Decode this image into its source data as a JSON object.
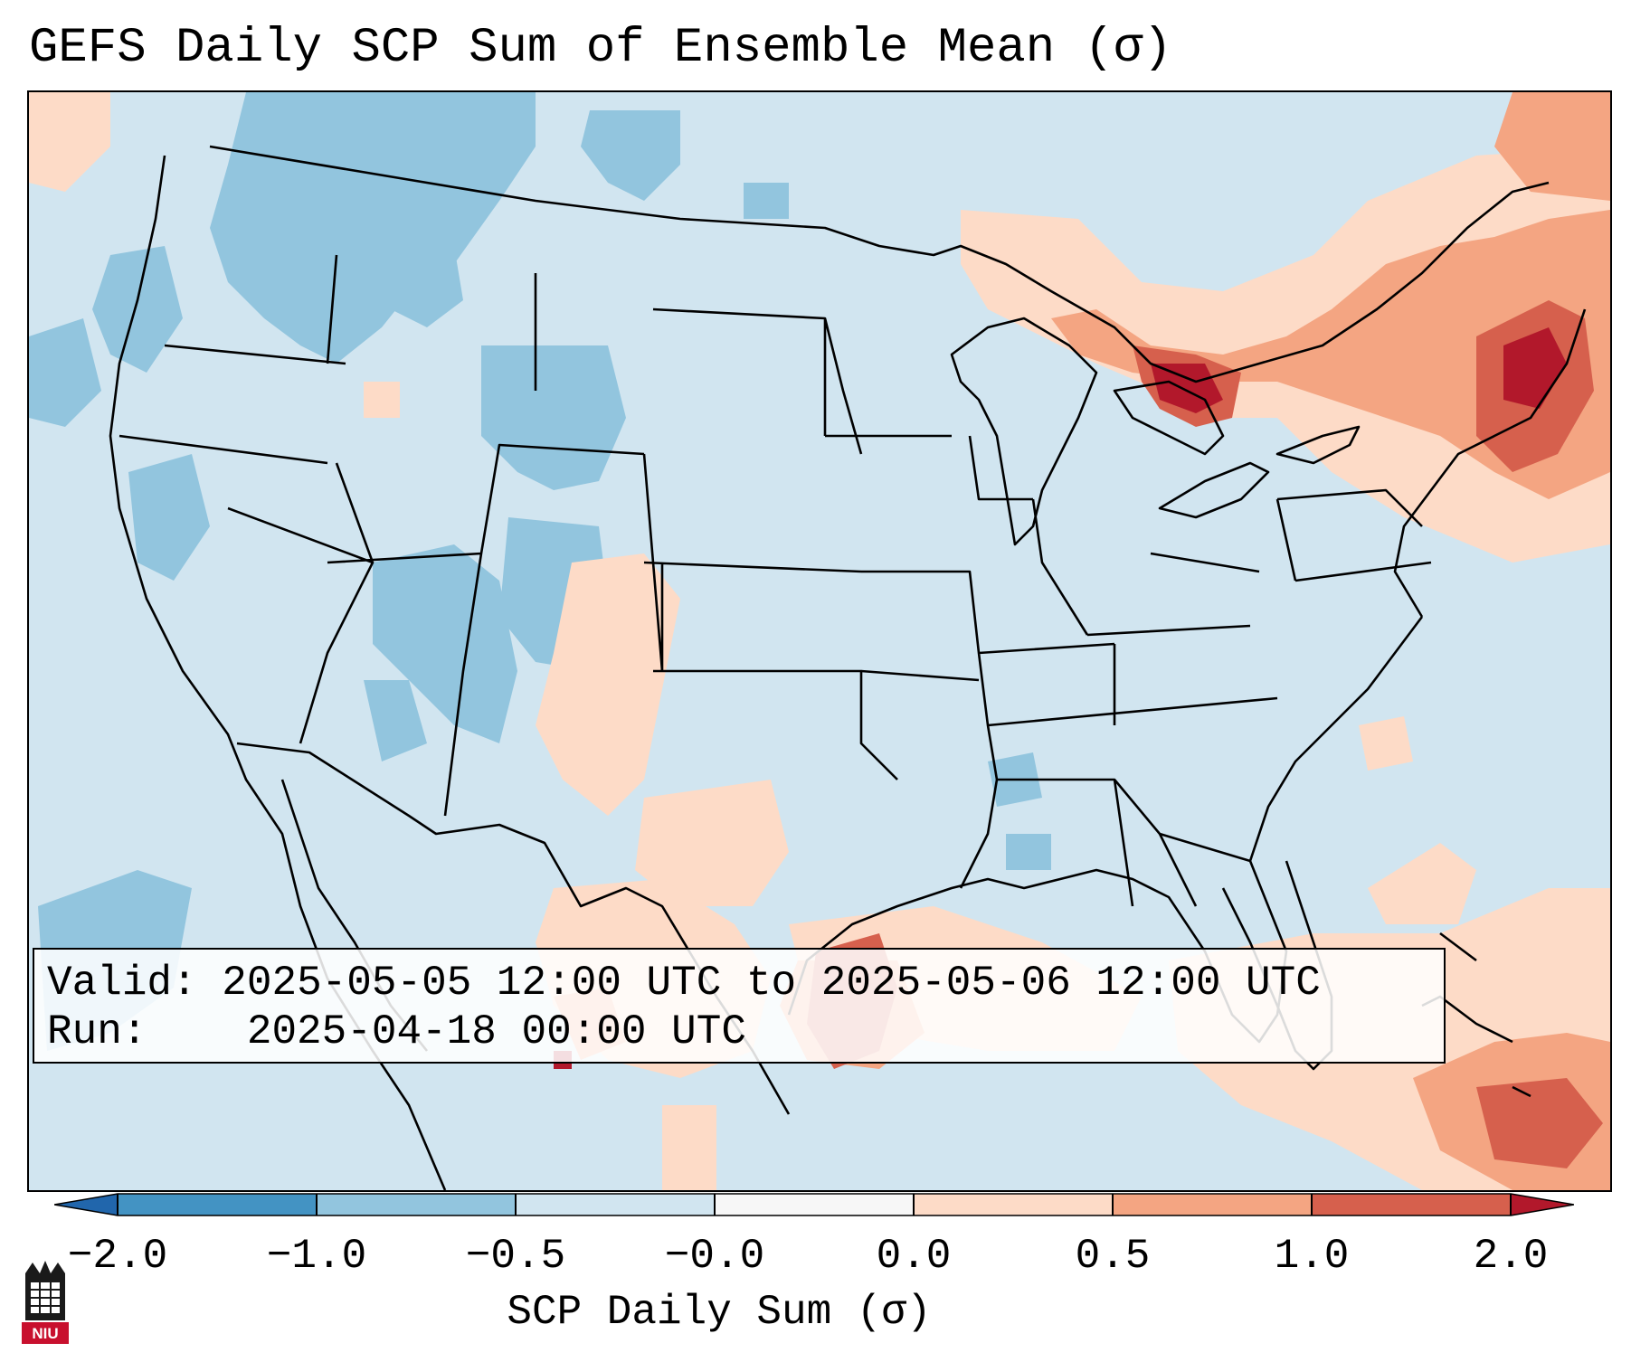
{
  "title": "GEFS Daily SCP Sum of Ensemble Mean (σ)",
  "info": {
    "valid_label": "Valid:",
    "valid_value": "2025-05-05 12:00 UTC to 2025-05-06 12:00 UTC",
    "run_label": "Run:",
    "run_value": "2025-04-18 00:00 UTC"
  },
  "colorbar": {
    "label": "SCP Daily Sum (σ)",
    "ticks": [
      "−2.0",
      "−1.0",
      "−0.5",
      "−0.0",
      "0.0",
      "0.5",
      "1.0",
      "2.0"
    ],
    "colors": [
      "#2166ac",
      "#4393c3",
      "#92c5de",
      "#d1e5f0",
      "#f7f7f7",
      "#fddbc7",
      "#f4a582",
      "#d6604d",
      "#b2182b"
    ]
  },
  "map": {
    "region": "Contiguous United States",
    "background_color": "#d1e5f0",
    "highlights": [
      {
        "area": "Southern New England",
        "level": "1.0 to 2.0"
      },
      {
        "area": "Northern Michigan / Lake Huron",
        "level": "1.0 to 2.0"
      },
      {
        "area": "Upper Texas Gulf Coast",
        "level": "0.5 to 1.0"
      },
      {
        "area": "Northeastern Mexico",
        "level": "1.0 to 2.0"
      },
      {
        "area": "Rocky Mountains",
        "level": "-1.0 to -0.5"
      }
    ]
  },
  "logo": {
    "name": "niu-logo",
    "text": "NIU"
  }
}
